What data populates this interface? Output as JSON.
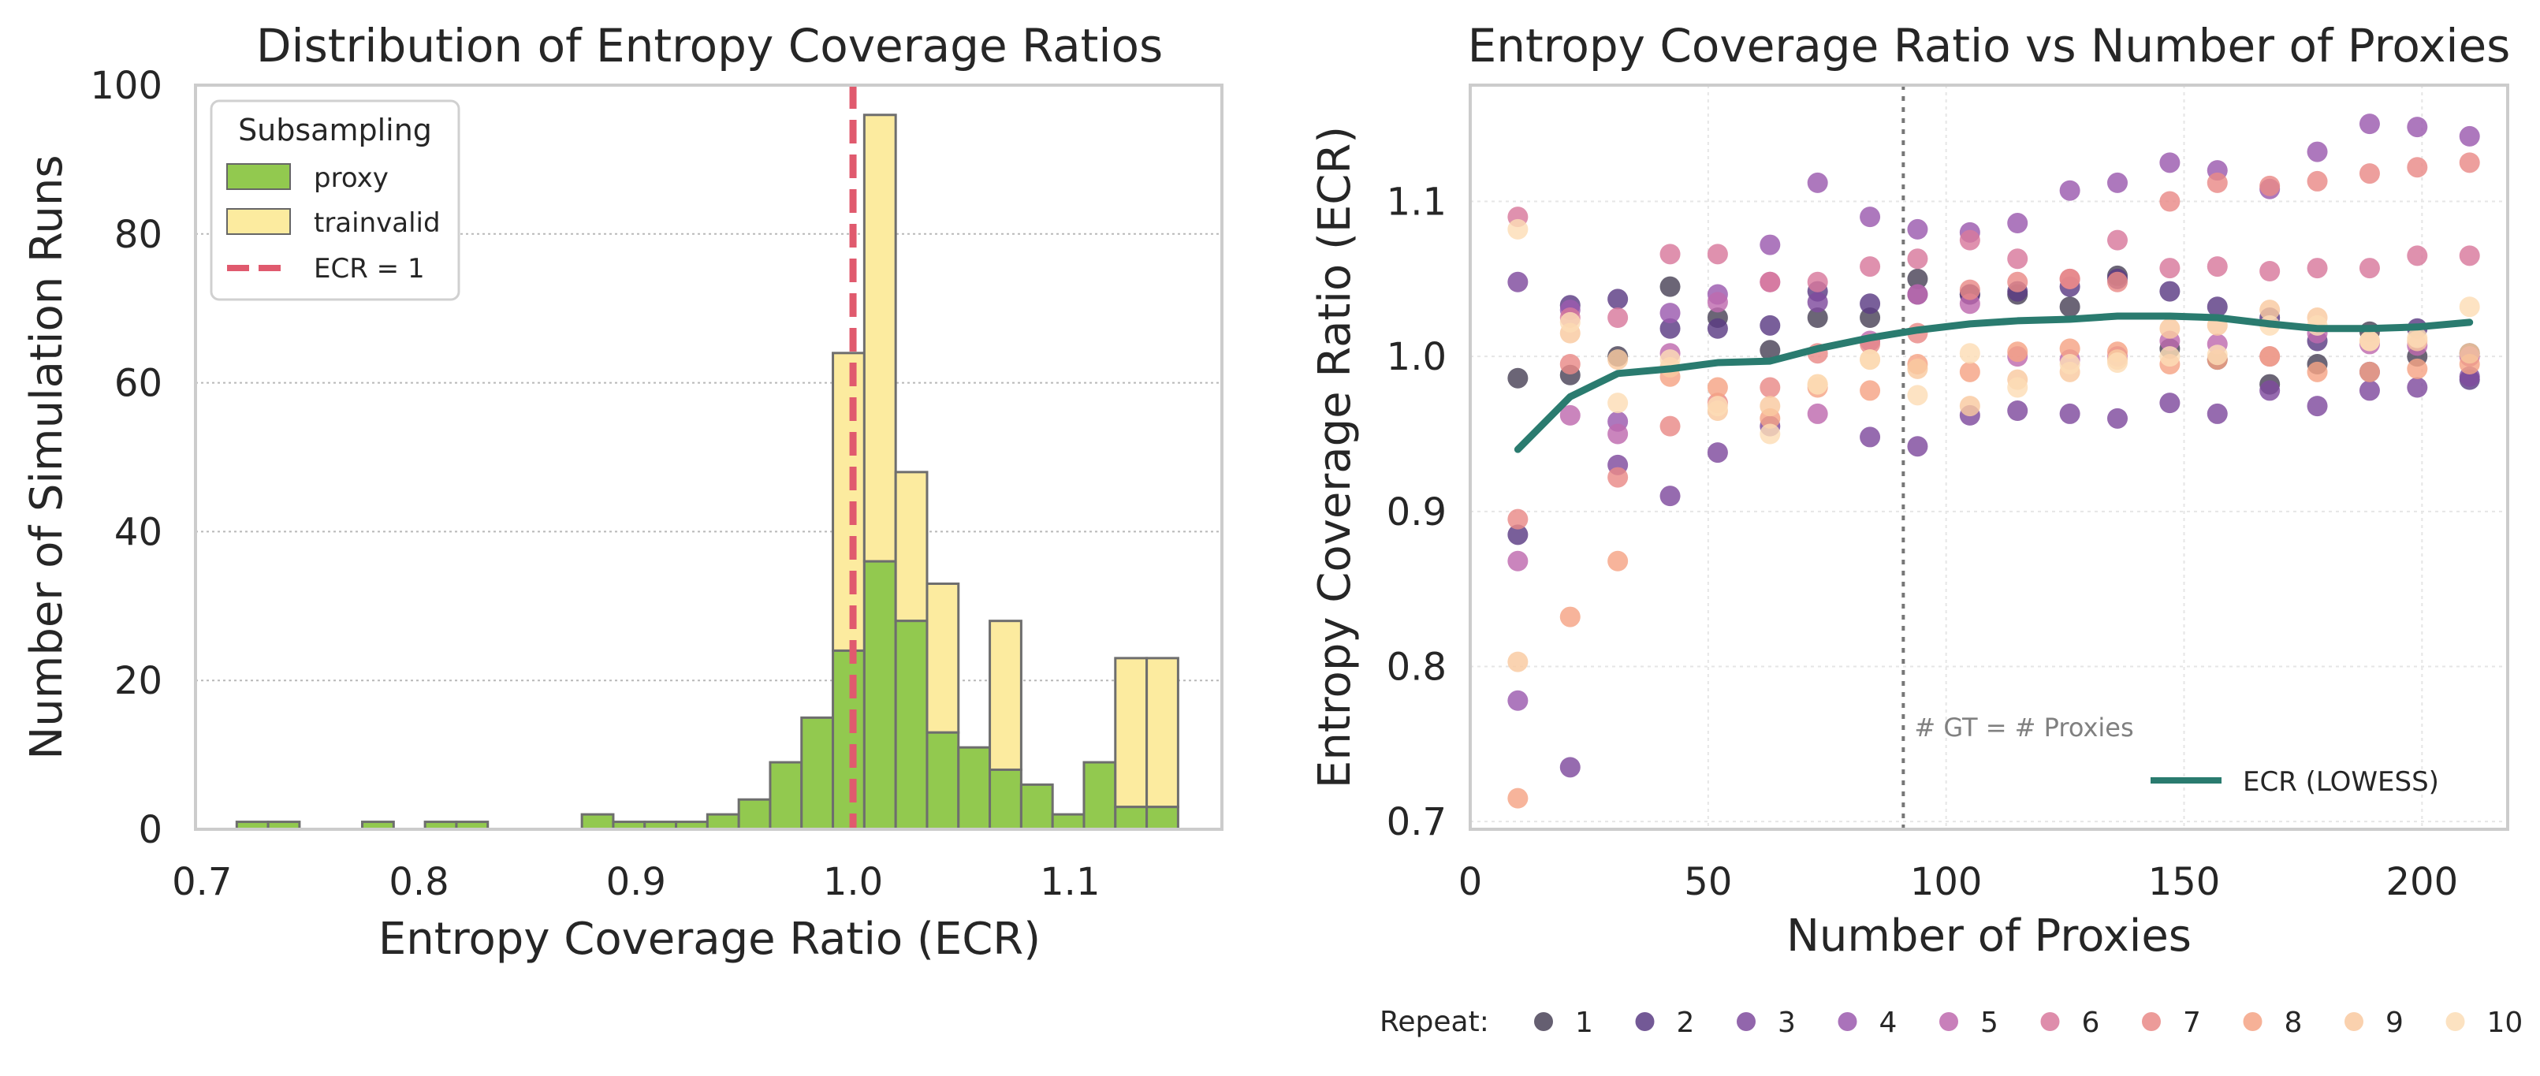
{
  "chart_data": [
    {
      "type": "histogram",
      "title": "Distribution of Entropy Coverage Ratios",
      "xlabel": "Entropy Coverage Ratio (ECR)",
      "ylabel": "Number of Simulation Runs",
      "xlim": [
        0.697,
        1.17
      ],
      "ylim": [
        0,
        100
      ],
      "xticks": [
        "0.7",
        "0.8",
        "0.9",
        "1.0",
        "1.1"
      ],
      "yticks": [
        "0",
        "20",
        "40",
        "60",
        "80",
        "100"
      ],
      "grid": "y",
      "bins": {
        "start": 0.716,
        "width": 0.01446,
        "proxy": [
          1,
          1,
          0,
          0,
          1,
          0,
          1,
          1,
          0,
          0,
          0,
          2,
          1,
          1,
          1,
          2,
          4,
          9,
          15,
          24,
          36,
          28,
          13,
          11,
          8,
          6,
          2,
          9,
          3,
          3
        ],
        "trainvalid": [
          0,
          0,
          0,
          0,
          0,
          0,
          0,
          0,
          0,
          0,
          0,
          0,
          0,
          0,
          0,
          0,
          0,
          0,
          0,
          40,
          60,
          20,
          20,
          0,
          20,
          0,
          0,
          0,
          20,
          20
        ]
      },
      "reference_line": {
        "x": 1.0,
        "label": "ECR = 1",
        "color": "#E05A6E"
      },
      "legend": {
        "title": "Subsampling",
        "placement": "top-left",
        "entries": [
          {
            "label": "proxy",
            "color": "#92C94F"
          },
          {
            "label": "trainvalid",
            "color": "#FCEB9F"
          },
          {
            "label": "ECR = 1",
            "color": "#E05A6E"
          }
        ]
      }
    },
    {
      "type": "scatter",
      "title": "Entropy Coverage Ratio vs Number of Proxies",
      "xlabel": "Number of Proxies",
      "ylabel": "Entropy Coverage Ratio (ECR)",
      "xlim": [
        0,
        218
      ],
      "ylim": [
        0.695,
        1.175
      ],
      "xticks": [
        "0",
        "50",
        "100",
        "150",
        "200"
      ],
      "yticks": [
        "0.7",
        "0.8",
        "0.9",
        "1.0",
        "1.1"
      ],
      "grid": "both",
      "x": [
        10,
        21,
        31,
        42,
        52,
        63,
        73,
        84,
        94,
        105,
        115,
        126,
        136,
        147,
        157,
        168,
        178,
        189,
        199,
        210
      ],
      "series": [
        {
          "name": "1",
          "color": "#4A4358",
          "values": [
            0.986,
            0.988,
            1.0,
            1.045,
            1.025,
            1.004,
            1.025,
            1.025,
            1.05,
            1.04,
            1.04,
            1.032,
            1.052,
            1.005,
            0.998,
            0.982,
            0.995,
            1.016,
            1.0,
            1.002
          ]
        },
        {
          "name": "2",
          "color": "#5B3C84",
          "values": [
            0.885,
            1.033,
            1.037,
            1.018,
            1.018,
            1.02,
            1.042,
            1.034,
            1.04,
            1.04,
            1.042,
            1.045,
            1.05,
            1.042,
            1.032,
            1.025,
            1.01,
            0.99,
            1.018,
            0.985
          ]
        },
        {
          "name": "3",
          "color": "#7F4B9E",
          "values": [
            1.048,
            0.735,
            0.93,
            0.91,
            0.938,
            0.955,
            1.035,
            0.948,
            0.942,
            0.962,
            0.965,
            0.963,
            0.96,
            0.97,
            0.963,
            0.978,
            0.968,
            0.978,
            0.98,
            0.987
          ]
        },
        {
          "name": "4",
          "color": "#9B5AAE",
          "values": [
            0.778,
            1.03,
            0.958,
            1.028,
            1.04,
            1.072,
            1.112,
            1.09,
            1.082,
            1.08,
            1.086,
            1.107,
            1.112,
            1.125,
            1.12,
            1.108,
            1.132,
            1.15,
            1.148,
            1.142
          ]
        },
        {
          "name": "5",
          "color": "#BE6AAE",
          "values": [
            0.868,
            0.962,
            0.95,
            1.002,
            1.035,
            1.048,
            0.963,
            1.01,
            1.04,
            1.034,
            1.0,
            0.998,
            1.0,
            1.01,
            1.008,
            1.0,
            1.015,
            1.008,
            1.007,
            1.0
          ]
        },
        {
          "name": "6",
          "color": "#D8799C",
          "values": [
            1.09,
            1.025,
            1.025,
            1.066,
            1.066,
            1.048,
            1.048,
            1.058,
            1.063,
            1.075,
            1.063,
            1.05,
            1.075,
            1.057,
            1.058,
            1.055,
            1.057,
            1.057,
            1.065,
            1.065
          ]
        },
        {
          "name": "7",
          "color": "#E98A87",
          "values": [
            0.895,
            0.995,
            0.922,
            0.955,
            0.97,
            0.98,
            1.002,
            1.008,
            1.015,
            1.043,
            1.048,
            1.05,
            1.048,
            1.1,
            1.112,
            1.11,
            1.113,
            1.118,
            1.122,
            1.125
          ]
        },
        {
          "name": "8",
          "color": "#F5A385",
          "values": [
            0.715,
            0.832,
            0.868,
            0.987,
            0.98,
            0.96,
            0.98,
            0.978,
            0.995,
            0.99,
            1.003,
            1.005,
            1.003,
            0.995,
            0.998,
            1.0,
            0.99,
            0.99,
            0.992,
            0.995
          ]
        },
        {
          "name": "9",
          "color": "#F9C9A0",
          "values": [
            0.803,
            1.015,
            0.998,
            0.993,
            0.965,
            0.968,
            0.982,
            0.998,
            0.992,
            0.968,
            0.985,
            0.99,
            0.998,
            1.018,
            1.02,
            1.03,
            1.025,
            1.01,
            1.01,
            1.002
          ]
        },
        {
          "name": "10",
          "color": "#FCDDB6",
          "values": [
            1.082,
            1.022,
            0.97,
            0.998,
            0.968,
            0.95,
            0.982,
            0.998,
            0.975,
            1.002,
            0.98,
            0.995,
            0.996,
            1.0,
            1.001,
            1.02,
            1.02,
            1.01,
            1.012,
            1.032
          ]
        }
      ],
      "lowess": {
        "label": "ECR (LOWESS)",
        "color": "#2A7B6F",
        "values": [
          0.94,
          0.974,
          0.989,
          0.992,
          0.996,
          0.997,
          1.005,
          1.012,
          1.017,
          1.021,
          1.023,
          1.024,
          1.026,
          1.026,
          1.025,
          1.021,
          1.018,
          1.018,
          1.019,
          1.022
        ]
      },
      "reference_line": {
        "x": 91,
        "label": "# GT = # Proxies"
      },
      "legend": {
        "title": "Repeat:",
        "placement": "bottom"
      }
    }
  ]
}
